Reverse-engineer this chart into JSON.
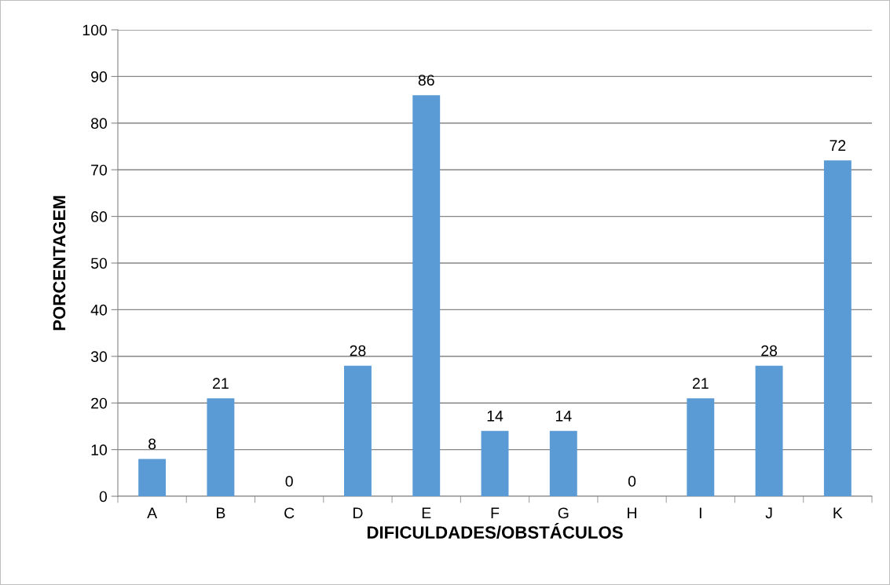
{
  "chart_data": {
    "type": "bar",
    "xlabel": "DIFICULDADES/OBSTÁCULOS",
    "ylabel": "PORCENTAGEM",
    "categories": [
      "A",
      "B",
      "C",
      "D",
      "E",
      "F",
      "G",
      "H",
      "I",
      "J",
      "K"
    ],
    "values": [
      8,
      21,
      0,
      28,
      86,
      14,
      14,
      0,
      21,
      28,
      72
    ],
    "color": "#5b9bd5",
    "ylim": [
      0,
      100
    ],
    "yticks": [
      0,
      10,
      20,
      30,
      40,
      50,
      60,
      70,
      80,
      90,
      100
    ],
    "grid": "y",
    "data_labels": true,
    "legend": false
  }
}
